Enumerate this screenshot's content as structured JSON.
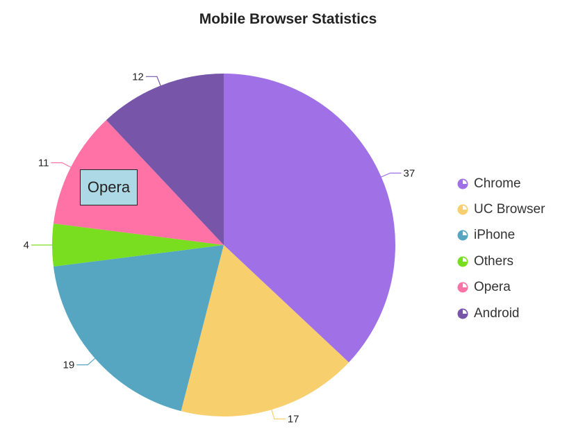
{
  "chart_data": {
    "type": "pie",
    "title": "Mobile Browser Statistics",
    "series": [
      {
        "name": "Chrome",
        "value": 37,
        "color": "#a071e6"
      },
      {
        "name": "UC Browser",
        "value": 17,
        "color": "#f7cf6d"
      },
      {
        "name": "iPhone",
        "value": 19,
        "color": "#56a6c2"
      },
      {
        "name": "Others",
        "value": 4,
        "color": "#7ade20"
      },
      {
        "name": "Opera",
        "value": 11,
        "color": "#ff72a6"
      },
      {
        "name": "Android",
        "value": 12,
        "color": "#7755a9"
      }
    ],
    "legend_position": "right",
    "data_labels": true,
    "tooltip": {
      "text": "Opera"
    }
  }
}
